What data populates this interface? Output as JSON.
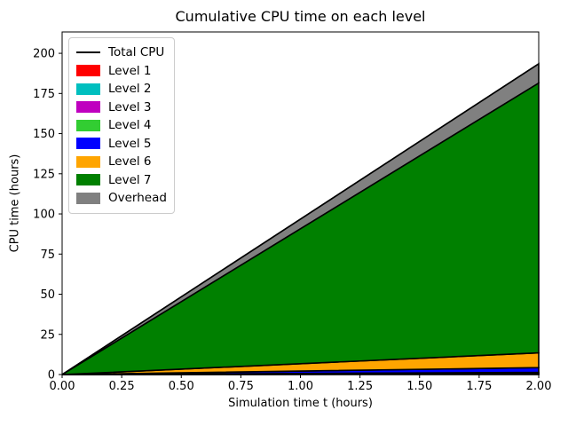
{
  "figure": {
    "background": "#ffffff"
  },
  "chart_data": {
    "type": "area",
    "stacked": true,
    "title": "Cumulative CPU time on each level",
    "xlabel": "Simulation time t (hours)",
    "ylabel": "CPU time (hours)",
    "grid": false,
    "xlim": [
      0,
      2
    ],
    "ylim": [
      0,
      213.3
    ],
    "x": [
      0,
      2
    ],
    "series": [
      {
        "name": "Level 1",
        "color": "#ff0000",
        "values": [
          0,
          0.1
        ]
      },
      {
        "name": "Level 2",
        "color": "#00bfbf",
        "values": [
          0,
          0.15
        ]
      },
      {
        "name": "Level 3",
        "color": "#bf00bf",
        "values": [
          0,
          0.25
        ]
      },
      {
        "name": "Level 4",
        "color": "#32cd32",
        "values": [
          0,
          0.8
        ]
      },
      {
        "name": "Level 5",
        "color": "#0000ff",
        "values": [
          0,
          3.0
        ]
      },
      {
        "name": "Level 6",
        "color": "#ffa500",
        "values": [
          0,
          9.2
        ]
      },
      {
        "name": "Level 7",
        "color": "#008000",
        "values": [
          0,
          168.0
        ]
      },
      {
        "name": "Overhead",
        "color": "#808080",
        "values": [
          0,
          12.0
        ]
      }
    ],
    "total_line": {
      "name": "Total CPU",
      "color": "#000000",
      "values": [
        0,
        193.5
      ]
    },
    "edge_color": "#000000",
    "xticks": {
      "values": [
        0,
        0.25,
        0.5,
        0.75,
        1,
        1.25,
        1.5,
        1.75,
        2
      ],
      "labels": [
        "0.00",
        "0.25",
        "0.50",
        "0.75",
        "1.00",
        "1.25",
        "1.50",
        "1.75",
        "2.00"
      ]
    },
    "yticks": {
      "values": [
        0,
        25,
        50,
        75,
        100,
        125,
        150,
        175,
        200
      ],
      "labels": [
        "0",
        "25",
        "50",
        "75",
        "100",
        "125",
        "150",
        "175",
        "200"
      ]
    },
    "legend": {
      "position": "upper left",
      "items": [
        {
          "label": "Total CPU",
          "shape": "line",
          "color": "#000000"
        },
        {
          "label": "Level 1",
          "shape": "patch",
          "color": "#ff0000"
        },
        {
          "label": "Level 2",
          "shape": "patch",
          "color": "#00bfbf"
        },
        {
          "label": "Level 3",
          "shape": "patch",
          "color": "#bf00bf"
        },
        {
          "label": "Level 4",
          "shape": "patch",
          "color": "#32cd32"
        },
        {
          "label": "Level 5",
          "shape": "patch",
          "color": "#0000ff"
        },
        {
          "label": "Level 6",
          "shape": "patch",
          "color": "#ffa500"
        },
        {
          "label": "Level 7",
          "shape": "patch",
          "color": "#008000"
        },
        {
          "label": "Overhead",
          "shape": "patch",
          "color": "#808080"
        }
      ]
    }
  }
}
